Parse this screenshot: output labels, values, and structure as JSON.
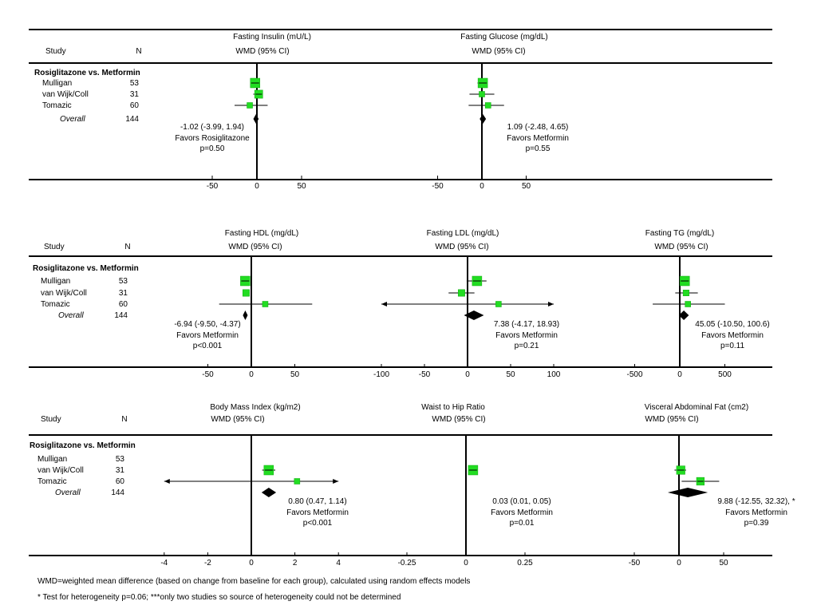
{
  "column_headers": {
    "study": "Study",
    "n": "N"
  },
  "footnotes": {
    "wmd": "WMD=weighted mean difference (based on change from baseline for each group), calculated using random effects models",
    "heterogeneity": "* Test for heterogeneity p=0.06; ***only two studies so source of heterogeneity could not be determined"
  },
  "chart_data": [
    {
      "type": "forest",
      "comparison": "Rosiglitazone vs. Metformin",
      "studies": [
        {
          "label": "Mulligan",
          "n": "53"
        },
        {
          "label": "van Wijk/Coll",
          "n": "31"
        },
        {
          "label": "Tomazic",
          "n": "60"
        }
      ],
      "overall": {
        "label": "Overall",
        "n": "144"
      },
      "panels": [
        {
          "title": "Fasting Insulin (mU/L)",
          "subtitle": "WMD (95% CI)",
          "xlim": [
            -75,
            75
          ],
          "ticks": [
            -50,
            0,
            50
          ],
          "tick_labels": [
            "-50",
            "0",
            "50"
          ],
          "studies": [
            {
              "est": -2,
              "lo": -6,
              "hi": 2,
              "w": 1
            },
            {
              "est": 2,
              "lo": -4,
              "hi": 6,
              "w": 0.8
            },
            {
              "est": -8,
              "lo": -25,
              "hi": 12,
              "w": 0.45
            }
          ],
          "overall": {
            "est": -1.02,
            "lo": -3.99,
            "hi": 1.94
          },
          "summary": {
            "ci": "-1.02 (-3.99, 1.94)",
            "favors": "Favors Rosiglitazone",
            "p": "p=0.50"
          }
        },
        {
          "title": "Fasting Glucose (mg/dL)",
          "subtitle": "WMD (95% CI)",
          "xlim": [
            -75,
            75
          ],
          "ticks": [
            -50,
            0,
            50
          ],
          "tick_labels": [
            "-50",
            "0",
            "50"
          ],
          "studies": [
            {
              "est": 1,
              "lo": -5,
              "hi": 6,
              "w": 1
            },
            {
              "est": 0,
              "lo": -14,
              "hi": 14,
              "w": 0.45
            },
            {
              "est": 7,
              "lo": -15,
              "hi": 25,
              "w": 0.45
            }
          ],
          "overall": {
            "est": 1.09,
            "lo": -2.48,
            "hi": 4.65
          },
          "summary": {
            "ci": "1.09 (-2.48, 4.65)",
            "favors": "Favors Metformin",
            "p": "p=0.55"
          }
        },
        {
          "title": "Fasting HDL (mg/dL)",
          "subtitle": "WMD (95% CI)",
          "xlim": [
            -75,
            75
          ],
          "ticks": [
            -50,
            0,
            50
          ],
          "tick_labels": [
            "-50",
            "0",
            "50"
          ],
          "studies": [
            {
              "est": -7,
              "lo": -11,
              "hi": -3,
              "w": 1
            },
            {
              "est": -6,
              "lo": -10,
              "hi": -2,
              "w": 0.6
            },
            {
              "est": 16,
              "lo": -37,
              "hi": 70,
              "w": 0.45
            }
          ],
          "overall": {
            "est": -6.94,
            "lo": -9.5,
            "hi": -4.37
          },
          "summary": {
            "ci": "-6.94 (-9.50, -4.37)",
            "favors": "Favors Metformin",
            "p": "p<0.001"
          }
        },
        {
          "title": "Fasting LDL (mg/dL)",
          "subtitle": "WMD (95% CI)",
          "xlim": [
            -110,
            110
          ],
          "ticks": [
            -100,
            -50,
            0,
            50,
            100
          ],
          "tick_labels": [
            "-100",
            "-50",
            "0",
            "50",
            "100"
          ],
          "studies": [
            {
              "est": 11,
              "lo": -1,
              "hi": 22,
              "w": 1
            },
            {
              "est": -7,
              "lo": -22,
              "hi": 8,
              "w": 0.6
            },
            {
              "est": 36,
              "lo": -100,
              "hi": 100,
              "w": 0.45,
              "arrows": true
            }
          ],
          "overall": {
            "est": 7.38,
            "lo": -4.17,
            "hi": 18.93
          },
          "summary": {
            "ci": "7.38 (-4.17, 18.93)",
            "favors": "Favors Metformin",
            "p": "p=0.21"
          }
        },
        {
          "title": "Fasting TG (mg/dL)",
          "subtitle": "WMD (95% CI)",
          "xlim": [
            -550,
            550
          ],
          "ticks": [
            -500,
            0,
            500
          ],
          "tick_labels": [
            "-500",
            "0",
            "500"
          ],
          "studies": [
            {
              "est": 55,
              "lo": 0,
              "hi": 110,
              "w": 1
            },
            {
              "est": 70,
              "lo": -50,
              "hi": 200,
              "w": 0.5
            },
            {
              "est": 90,
              "lo": -300,
              "hi": 500,
              "w": 0.45
            }
          ],
          "overall": {
            "est": 45.05,
            "lo": -10.5,
            "hi": 100.6
          },
          "summary": {
            "ci": "45.05 (-10.50, 100.6)",
            "favors": "Favors Metformin",
            "p": "p=0.11"
          }
        },
        {
          "title": "Body Mass Index (kg/m2)",
          "subtitle": "WMD (95% CI)",
          "xlim": [
            -4.2,
            4.2
          ],
          "ticks": [
            -4,
            -2,
            0,
            2,
            4
          ],
          "tick_labels": [
            "-4",
            "-2",
            "0",
            "2",
            "4"
          ],
          "studies": [
            {
              "est": 0.8,
              "lo": 0.5,
              "hi": 1.1,
              "w": 1
            },
            {
              "est": 2.1,
              "lo": -4,
              "hi": 4,
              "w": 0.45,
              "arrows": true
            }
          ],
          "overall": {
            "est": 0.8,
            "lo": 0.47,
            "hi": 1.14
          },
          "summary": {
            "ci": "0.80 (0.47, 1.14)",
            "favors": "Favors Metformin",
            "p": "p<0.001"
          }
        },
        {
          "title": "Waist to Hip Ratio",
          "subtitle": "WMD (95% CI)",
          "xlim": [
            -0.35,
            0.35
          ],
          "ticks": [
            -0.25,
            0,
            0.25
          ],
          "tick_labels": [
            "-0.25",
            "0",
            "0.25"
          ],
          "studies": [
            {
              "est": 0.03,
              "lo": 0.01,
              "hi": 0.05,
              "w": 1
            }
          ],
          "overall": null,
          "summary": {
            "ci": "0.03 (0.01, 0.05)",
            "favors": "Favors Metformin",
            "p": "p=0.01"
          }
        },
        {
          "title": "Visceral Abdominal Fat (cm2)",
          "subtitle": "WMD (95% CI)",
          "xlim": [
            -70,
            70
          ],
          "ticks": [
            -50,
            0,
            50
          ],
          "tick_labels": [
            "-50",
            "0",
            "50"
          ],
          "studies": [
            {
              "est": 2,
              "lo": -5,
              "hi": 8,
              "w": 0.85
            },
            {
              "est": 24,
              "lo": 3,
              "hi": 45,
              "w": 0.75
            }
          ],
          "overall": {
            "est": 9.88,
            "lo": -12.55,
            "hi": 32.32
          },
          "summary": {
            "ci": "9.88 (-12.55, 32.32), *",
            "favors": "Favors Metformin",
            "p": "p=0.39"
          }
        }
      ]
    }
  ],
  "colors": {
    "study_marker": "#22dd22",
    "study_marker_edge": "#11aa11",
    "overall_diamond": "#000000",
    "lines": "#000000"
  }
}
